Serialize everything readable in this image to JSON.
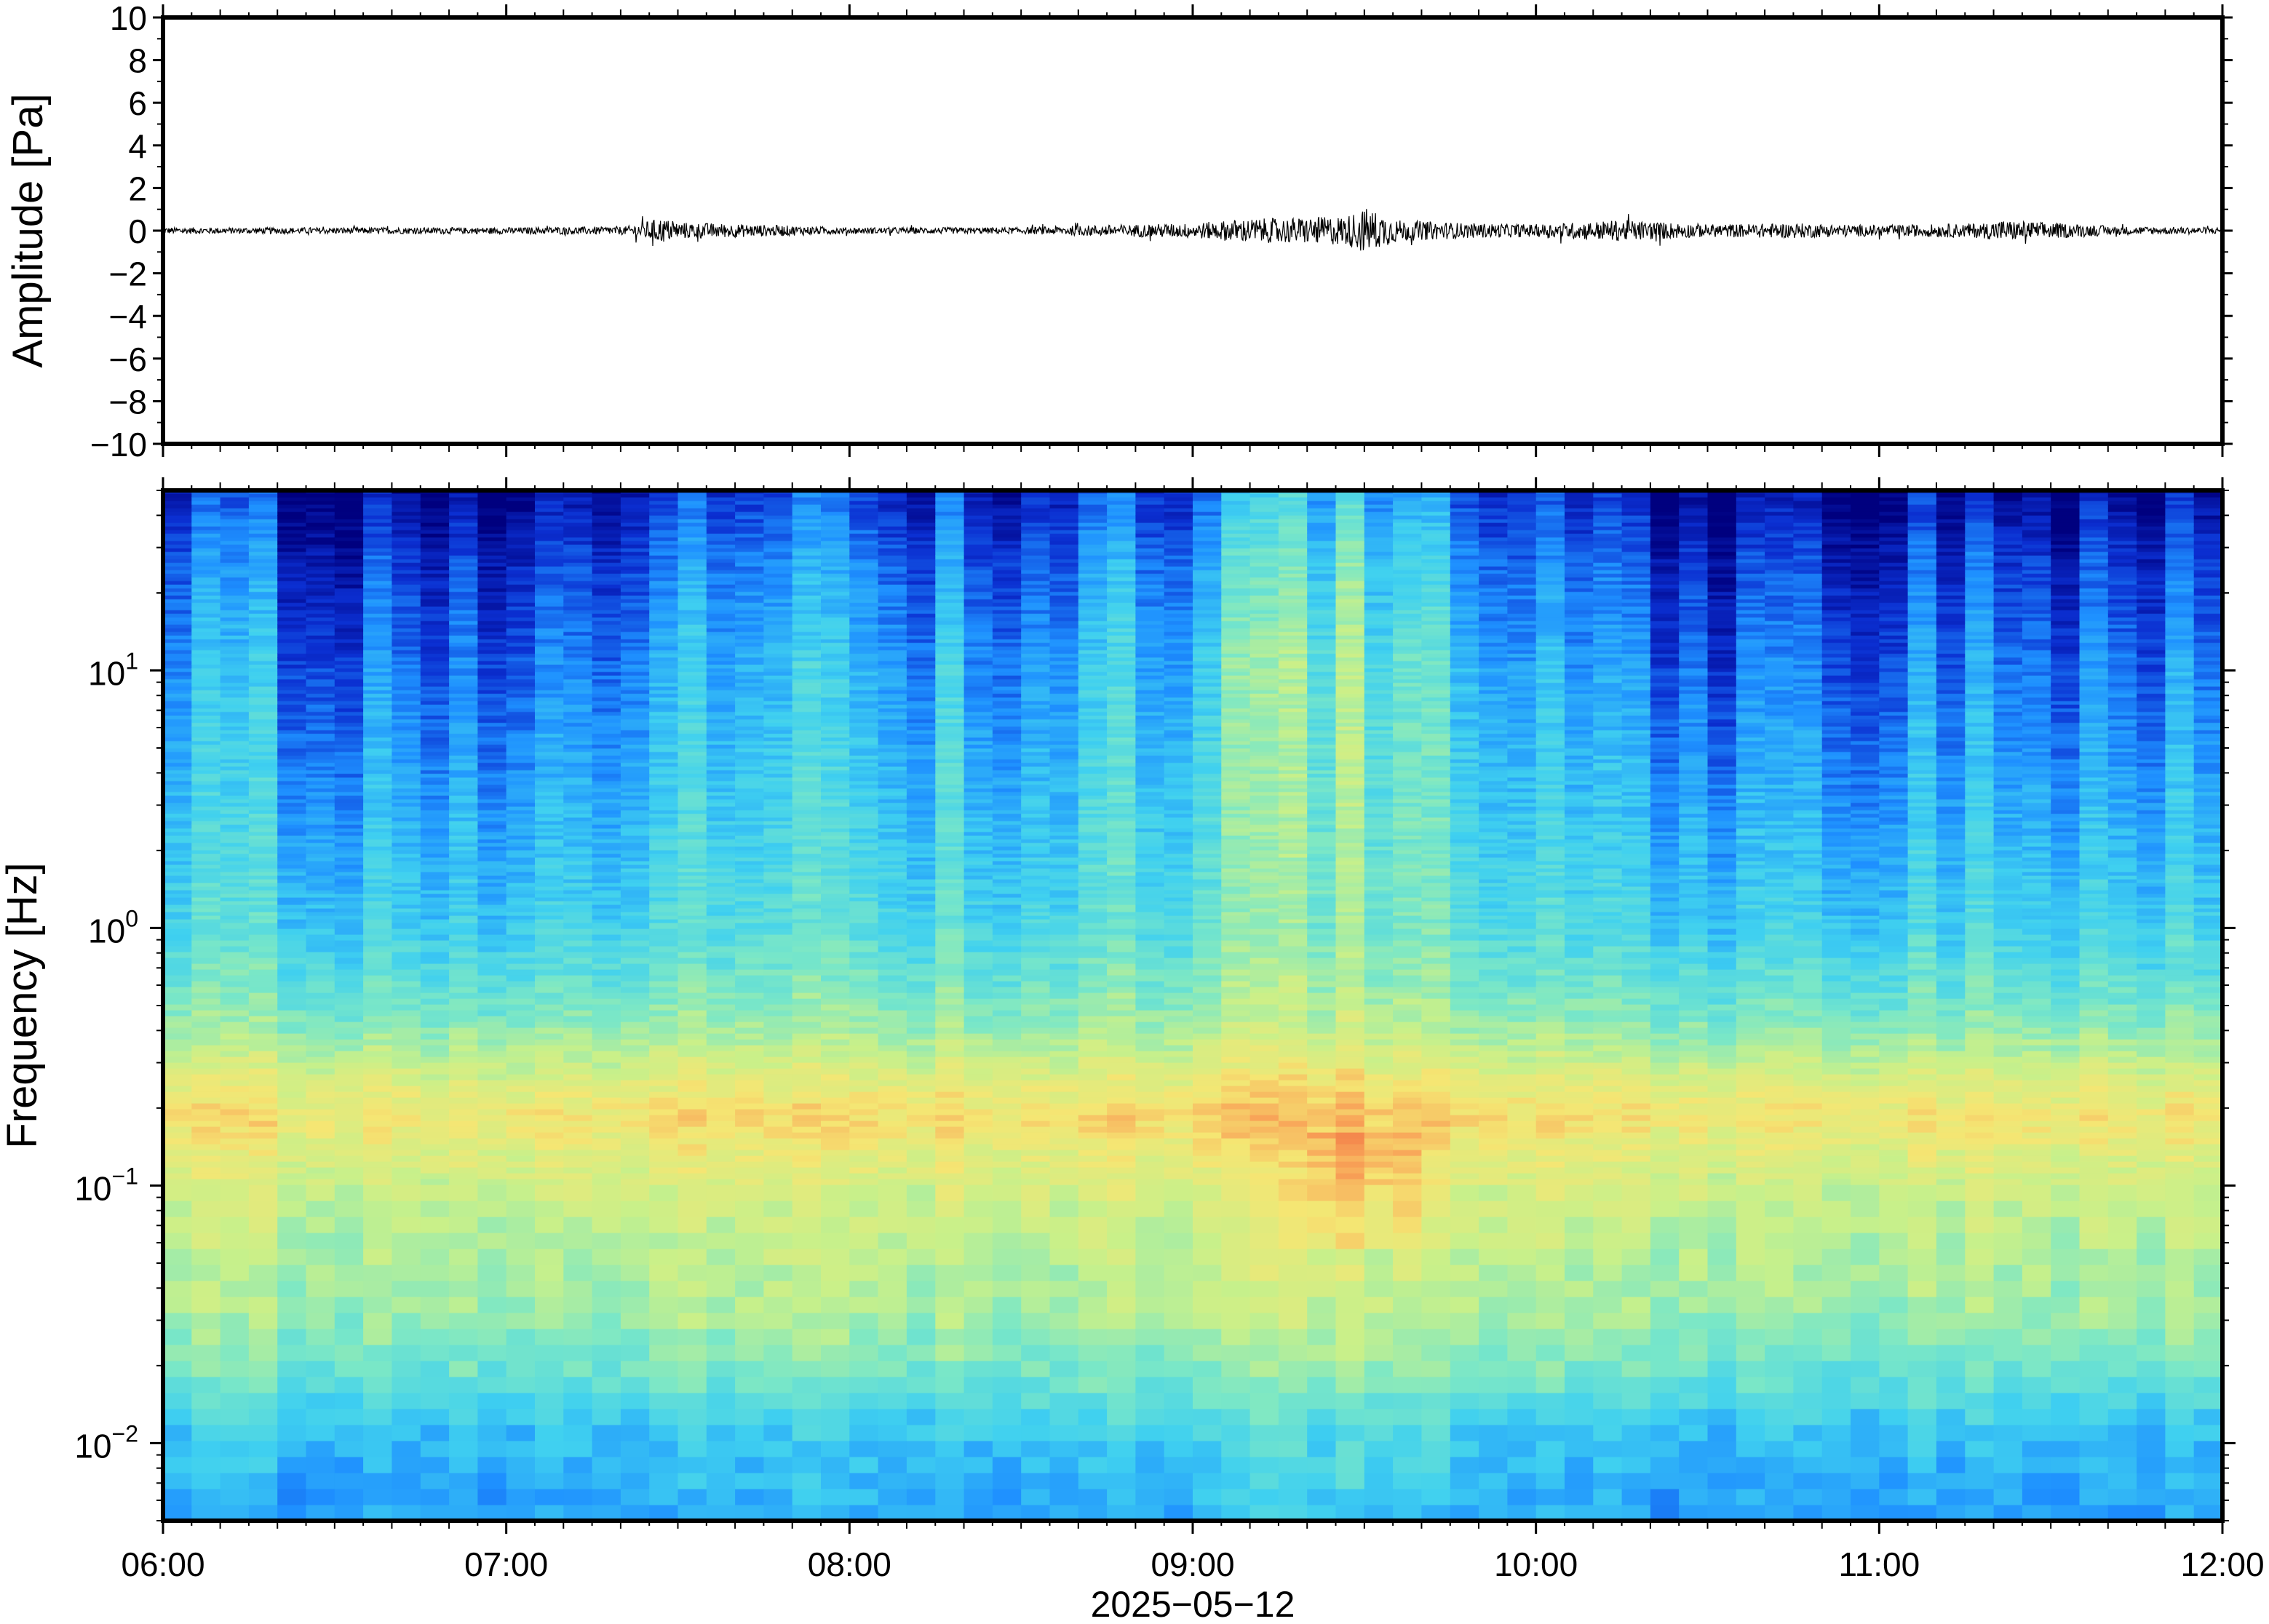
{
  "chart_data": [
    {
      "type": "line",
      "panel": "waveform",
      "title": "",
      "ylabel": "Amplitude [Pa]",
      "ylim": [
        -10,
        10
      ],
      "yticks": [
        10,
        8,
        6,
        4,
        2,
        0,
        -2,
        -4,
        -6,
        -8,
        -10
      ],
      "ytick_labels": [
        "10",
        "8",
        "6",
        "4",
        "2",
        "0",
        "−2",
        "−4",
        "−6",
        "−8",
        "−10"
      ],
      "x_range_hours": [
        6,
        12
      ],
      "line_color": "#000000",
      "series": [
        {
          "x_hours": [
            6.0,
            6.5,
            7.0,
            7.35,
            7.45,
            7.5,
            7.7,
            8.0,
            8.5,
            8.7,
            9.0,
            9.15,
            9.3,
            9.45,
            9.5,
            9.6,
            9.8,
            10.0,
            10.25,
            10.5,
            10.75,
            11.0,
            11.3,
            11.35,
            11.7,
            12.0
          ],
          "envelope_pa": [
            0.15,
            0.15,
            0.15,
            0.2,
            0.6,
            0.4,
            0.3,
            0.15,
            0.15,
            0.25,
            0.35,
            0.55,
            0.6,
            0.7,
            1.1,
            0.5,
            0.35,
            0.3,
            0.5,
            0.3,
            0.35,
            0.25,
            0.35,
            0.5,
            0.2,
            0.15
          ]
        }
      ]
    },
    {
      "type": "heatmap",
      "panel": "spectrogram",
      "title": "",
      "ylabel": "Frequency [Hz]",
      "xlabel": "2025−05−12",
      "y_scale": "log",
      "ylim_hz": [
        0.005,
        50
      ],
      "yticks_hz": [
        10,
        1,
        0.1,
        0.01
      ],
      "ytick_labels": [
        {
          "base": "10",
          "exp": "1"
        },
        {
          "base": "10",
          "exp": "0"
        },
        {
          "base": "10",
          "exp": "−1"
        },
        {
          "base": "10",
          "exp": "−2"
        }
      ],
      "xlim_hours": [
        6,
        12
      ],
      "xticks_hours": [
        6,
        7,
        8,
        9,
        10,
        11,
        12
      ],
      "xtick_labels": [
        "06:00",
        "07:00",
        "08:00",
        "09:00",
        "10:00",
        "11:00",
        "12:00"
      ],
      "colormap": [
        "#00007f",
        "#0b2fd1",
        "#1e90ff",
        "#3fd0f0",
        "#7ae7c7",
        "#c8f08a",
        "#f5e673",
        "#f8a85a",
        "#ef5a3a"
      ],
      "colormap_name": "jet-like",
      "time_columns": 72,
      "band_peak_hz": 0.18,
      "energy_peak_hours": [
        9.3,
        9.6
      ]
    }
  ]
}
